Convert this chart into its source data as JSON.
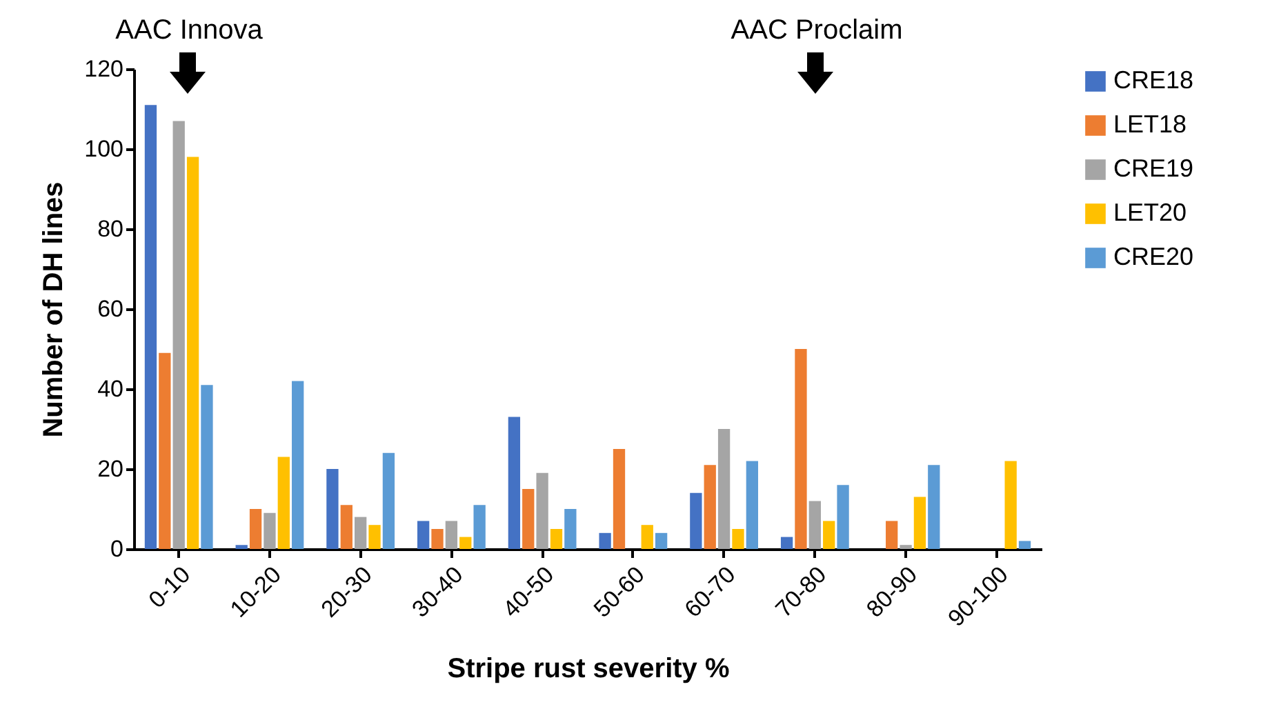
{
  "chart_data": {
    "type": "bar",
    "xlabel": "Stripe rust severity %",
    "ylabel": "Number of DH lines",
    "categories": [
      "0-10",
      "10-20",
      "20-30",
      "30-40",
      "40-50",
      "50-60",
      "60-70",
      "70-80",
      "80-90",
      "90-100"
    ],
    "series": [
      {
        "name": "CRE18",
        "color": "#4472c4",
        "values": [
          111,
          1,
          20,
          7,
          33,
          4,
          14,
          3,
          0,
          0
        ]
      },
      {
        "name": "LET18",
        "color": "#ed7d31",
        "values": [
          49,
          10,
          11,
          5,
          15,
          25,
          21,
          50,
          7,
          0
        ]
      },
      {
        "name": "CRE19",
        "color": "#a5a5a5",
        "values": [
          107,
          9,
          8,
          7,
          19,
          0,
          30,
          12,
          1,
          0
        ]
      },
      {
        "name": "LET20",
        "color": "#ffc000",
        "values": [
          98,
          23,
          6,
          3,
          5,
          6,
          5,
          7,
          13,
          22
        ]
      },
      {
        "name": "CRE20",
        "color": "#5b9bd5",
        "values": [
          41,
          42,
          24,
          11,
          10,
          4,
          22,
          16,
          21,
          2
        ]
      }
    ],
    "ylim": [
      0,
      120
    ],
    "yticks": [
      0,
      20,
      40,
      60,
      80,
      100,
      120
    ],
    "grid": false,
    "legend": "right",
    "annotations": [
      "AAC Innova",
      "AAC Proclaim"
    ]
  }
}
